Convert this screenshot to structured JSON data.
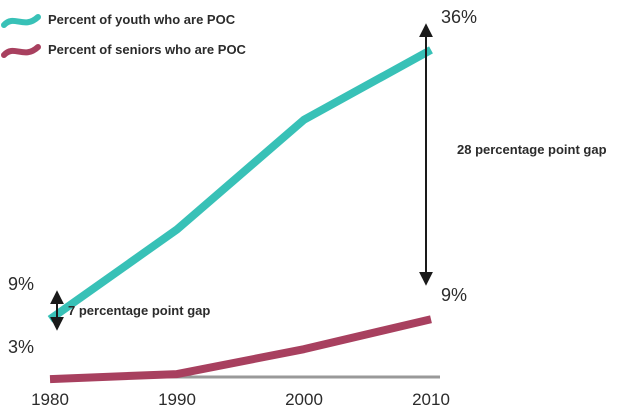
{
  "chart_data": {
    "type": "line",
    "title": "",
    "xlabel": "",
    "ylabel": "",
    "x": [
      "1980",
      "1990",
      "2000",
      "2010"
    ],
    "ylim": [
      0,
      40
    ],
    "grid": false,
    "legend_position": "top-left",
    "series": [
      {
        "name": "Percent of youth who are POC",
        "color": "#38c1b7",
        "values": [
          9,
          18,
          29,
          36
        ]
      },
      {
        "name": "Percent of seniors who are POC",
        "color": "#a8405f",
        "values": [
          3,
          3.5,
          6,
          9
        ]
      }
    ],
    "value_labels": {
      "youth_start": "9%",
      "seniors_start": "3%",
      "youth_end": "36%",
      "seniors_end": "9%"
    },
    "annotations": {
      "start_gap": "7 percentage point gap",
      "end_gap": "28 percentage point gap"
    },
    "axis_color": "#999999"
  }
}
